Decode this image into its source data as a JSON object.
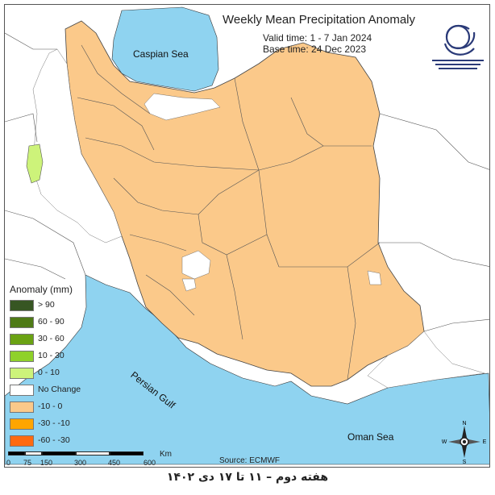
{
  "map": {
    "title": "Weekly Mean Precipitation Anomaly",
    "valid_time": "Valid time: 1 - 7 Jan 2024",
    "base_time": "Base time: 24 Dec 2023",
    "source": "Source: ECMWF",
    "footer": "هفته دوم – ۱۱ تا ۱۷ دی ۱۴۰۲",
    "colors": {
      "sea": "#8fd3f0",
      "negative_0_10": "#fbc98a",
      "positive_0_10": "#cdf37a",
      "no_change": "#ffffff",
      "border": "#444444"
    }
  },
  "labels": {
    "caspian": "Caspian Sea",
    "persian_gulf": "Persian Gulf",
    "oman_sea": "Oman Sea"
  },
  "legend": {
    "title": "Anomaly (mm)",
    "items": [
      {
        "label": "> 90",
        "color": "#375623"
      },
      {
        "label": "60 - 90",
        "color": "#4e7a16"
      },
      {
        "label": "30 - 60",
        "color": "#6aa213"
      },
      {
        "label": "10 - 30",
        "color": "#8fd12a"
      },
      {
        "label": "0 - 10",
        "color": "#cdf37a"
      },
      {
        "label": "No Change",
        "color": "#ffffff"
      },
      {
        "label": "-10 - 0",
        "color": "#fbc98a"
      },
      {
        "label": "-30 - -10",
        "color": "#ffa500"
      },
      {
        "label": "-60 - -30",
        "color": "#ff6a10"
      }
    ]
  },
  "scale_bar": {
    "ticks": [
      "0",
      "75",
      "150",
      "300",
      "450",
      "600"
    ],
    "unit": "Km"
  },
  "compass": {
    "n": "N",
    "s": "S",
    "e": "E",
    "w": "W"
  }
}
